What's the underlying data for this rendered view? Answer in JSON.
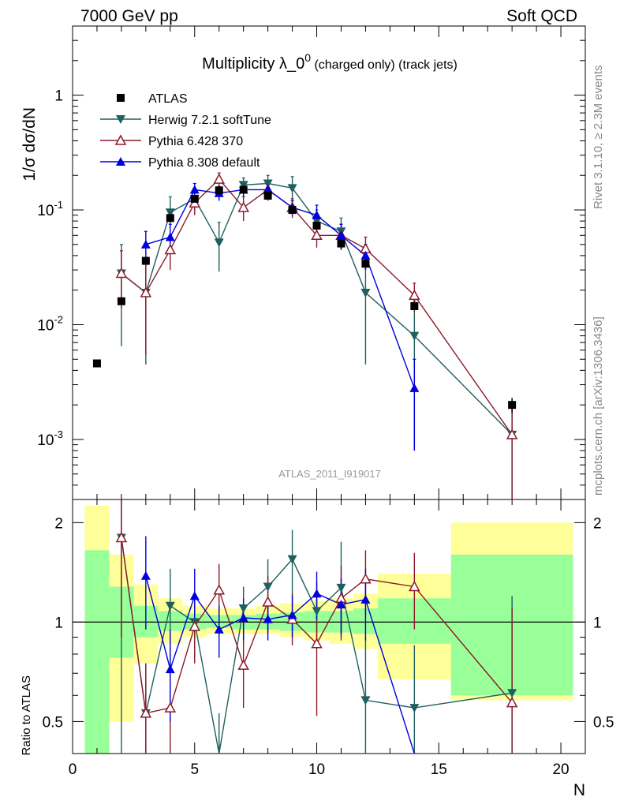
{
  "header": {
    "left": "7000 GeV pp",
    "right": "Soft QCD"
  },
  "side_labels": {
    "rivet": "Rivet 3.1.10, ≥ 2.3M events",
    "mcplots": "mcplots.cern.ch [arXiv:1306.3436]"
  },
  "chart_data": {
    "type": "scatter",
    "title": "Multiplicity λ_0",
    "title_sup": "0",
    "title_suffix": " (charged only) (track jets)",
    "analysis_id": "ATLAS_2011_I919017",
    "xlabel": "N",
    "ylabel": "1/σ dσ/dN",
    "ratio_ylabel": "Ratio to ATLAS",
    "xlim": [
      0,
      21
    ],
    "ylim": [
      0.0003,
      4
    ],
    "yscale": "log",
    "ratio_ylim": [
      0.4,
      2.35
    ],
    "ratio_yscale": "log",
    "x_ticks": [
      "0",
      "5",
      "10",
      "15",
      "20"
    ],
    "y_ticks": [
      "10^-3",
      "10^-2",
      "10^-1",
      "1"
    ],
    "ratio_ticks": [
      "0.5",
      "1",
      "2"
    ],
    "legend": [
      {
        "name": "ATLAS",
        "color": "#000000",
        "marker": "square"
      },
      {
        "name": "Herwig 7.2.1 softTune",
        "color": "#1f5f5f",
        "marker": "triangle-down"
      },
      {
        "name": "Pythia 6.428 370",
        "color": "#8b1a2b",
        "marker": "triangle-open"
      },
      {
        "name": "Pythia 8.308 default",
        "color": "#0000dd",
        "marker": "triangle-up"
      }
    ],
    "data": {
      "name": "ATLAS",
      "x": [
        1,
        2,
        3,
        4,
        5,
        6,
        7,
        8,
        9,
        10,
        11,
        12,
        14,
        18
      ],
      "y": [
        0.0046,
        0.016,
        0.036,
        0.085,
        0.125,
        0.148,
        0.15,
        0.133,
        0.1,
        0.073,
        0.051,
        0.034,
        0.0145,
        0.002
      ],
      "err": [
        0.0002,
        0.001,
        0.002,
        0.004,
        0.005,
        0.005,
        0.005,
        0.005,
        0.004,
        0.003,
        0.002,
        0.002,
        0.001,
        0.0003
      ]
    },
    "series": [
      {
        "name": "Herwig 7.2.1 softTune",
        "color": "#1f5f5f",
        "marker": "triangle-down",
        "x": [
          2,
          3,
          4,
          5,
          6,
          7,
          8,
          9,
          10,
          11,
          12,
          14,
          18
        ],
        "y": [
          0.028,
          0.019,
          0.095,
          0.125,
          0.052,
          0.165,
          0.17,
          0.155,
          0.08,
          0.065,
          0.019,
          0.008,
          0.0011
        ],
        "lo": [
          0.0065,
          0.0045,
          0.07,
          0.1,
          0.029,
          0.14,
          0.14,
          0.12,
          0.062,
          0.045,
          0.0045,
          0.0008,
          0.0001
        ],
        "hi": [
          0.05,
          0.035,
          0.13,
          0.15,
          0.078,
          0.19,
          0.2,
          0.195,
          0.1,
          0.085,
          0.035,
          0.016,
          0.0021
        ],
        "ratio": [
          1.8,
          0.53,
          1.12,
          1.0,
          0.35,
          1.1,
          1.28,
          1.55,
          1.08,
          1.27,
          0.58,
          0.55,
          0.61
        ],
        "ratio_lo": [
          0.35,
          0.3,
          0.8,
          0.78,
          0.2,
          0.93,
          1.05,
          1.2,
          0.85,
          0.88,
          0.3,
          0.3,
          0.3
        ],
        "ratio_hi": [
          2.5,
          0.75,
          1.45,
          1.22,
          0.53,
          1.28,
          1.55,
          1.9,
          1.32,
          1.75,
          0.9,
          0.85,
          1.2
        ]
      },
      {
        "name": "Pythia 6.428 370",
        "color": "#8b1a2b",
        "marker": "triangle-open",
        "x": [
          2,
          3,
          4,
          5,
          6,
          7,
          8,
          9,
          10,
          11,
          12,
          14,
          18
        ],
        "y": [
          0.028,
          0.019,
          0.045,
          0.115,
          0.185,
          0.105,
          0.15,
          0.105,
          0.06,
          0.06,
          0.046,
          0.018,
          0.0011
        ],
        "lo": [
          0.014,
          0.0055,
          0.03,
          0.09,
          0.16,
          0.08,
          0.12,
          0.085,
          0.047,
          0.045,
          0.035,
          0.013,
          0.0002
        ],
        "hi": [
          0.044,
          0.034,
          0.06,
          0.14,
          0.21,
          0.13,
          0.18,
          0.125,
          0.075,
          0.075,
          0.058,
          0.023,
          0.002
        ],
        "ratio": [
          1.8,
          0.53,
          0.55,
          0.97,
          1.25,
          0.74,
          1.15,
          1.02,
          0.86,
          1.18,
          1.35,
          1.28,
          0.57
        ],
        "ratio_lo": [
          0.9,
          0.3,
          0.3,
          0.75,
          1.0,
          0.55,
          0.93,
          0.85,
          0.52,
          0.9,
          1.05,
          0.95,
          0.3
        ],
        "ratio_hi": [
          2.5,
          0.75,
          0.8,
          1.18,
          1.5,
          0.95,
          1.38,
          1.22,
          1.18,
          1.48,
          1.65,
          1.62,
          1.1
        ]
      },
      {
        "name": "Pythia 8.308 default",
        "color": "#0000dd",
        "marker": "triangle-up",
        "x": [
          3,
          4,
          5,
          6,
          7,
          8,
          9,
          10,
          11,
          12,
          14
        ],
        "y": [
          0.05,
          0.058,
          0.15,
          0.14,
          0.15,
          0.15,
          0.105,
          0.09,
          0.06,
          0.04,
          0.0028
        ],
        "lo": [
          0.035,
          0.045,
          0.13,
          0.12,
          0.13,
          0.13,
          0.09,
          0.075,
          0.045,
          0.03,
          0.0008
        ],
        "hi": [
          0.065,
          0.075,
          0.17,
          0.16,
          0.17,
          0.17,
          0.12,
          0.11,
          0.075,
          0.05,
          0.005
        ],
        "ratio": [
          1.38,
          0.72,
          1.2,
          0.95,
          1.03,
          1.02,
          1.05,
          1.22,
          1.13,
          1.17,
          0.2
        ],
        "ratio_lo": [
          0.95,
          0.5,
          0.95,
          0.78,
          0.88,
          0.88,
          0.9,
          1.02,
          0.92,
          0.88,
          0.1
        ],
        "ratio_hi": [
          1.82,
          0.95,
          1.45,
          1.12,
          1.18,
          1.17,
          1.2,
          1.42,
          1.35,
          1.45,
          0.35
        ]
      }
    ],
    "bands": {
      "x_edges": [
        0.5,
        1.5,
        2.5,
        3.5,
        4.5,
        5.5,
        6.5,
        7.5,
        8.5,
        9.5,
        10.5,
        11.5,
        12.5,
        15.5,
        20.5
      ],
      "green_lo": [
        0.36,
        0.78,
        0.9,
        0.94,
        0.95,
        0.96,
        0.95,
        0.95,
        0.94,
        0.93,
        0.93,
        0.92,
        0.86,
        0.6
      ],
      "green_hi": [
        1.65,
        1.28,
        1.12,
        1.08,
        1.06,
        1.05,
        1.05,
        1.06,
        1.07,
        1.08,
        1.08,
        1.1,
        1.18,
        1.6
      ],
      "yellow_lo": [
        0.34,
        0.5,
        0.75,
        0.86,
        0.9,
        0.92,
        0.92,
        0.92,
        0.9,
        0.88,
        0.86,
        0.83,
        0.67,
        0.58
      ],
      "yellow_hi": [
        2.25,
        1.6,
        1.3,
        1.18,
        1.12,
        1.1,
        1.1,
        1.12,
        1.14,
        1.16,
        1.18,
        1.22,
        1.4,
        2.0
      ]
    }
  }
}
